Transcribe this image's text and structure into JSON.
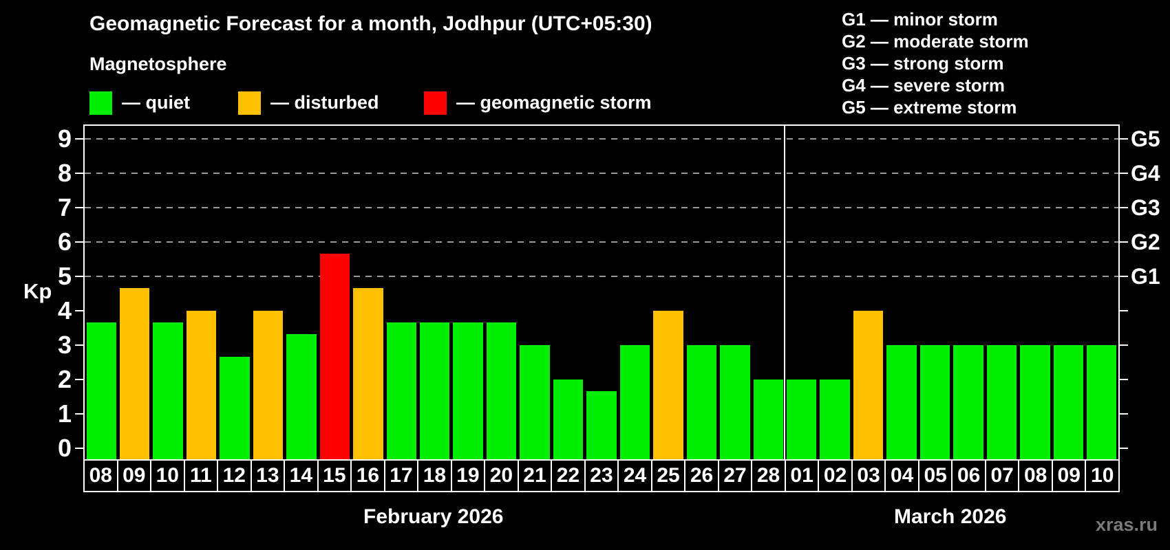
{
  "title": "Geomagnetic Forecast for a month, Jodhpur (UTC+05:30)",
  "subtitle": "Magnetosphere",
  "legend": [
    {
      "status": "quiet",
      "label": "— quiet",
      "color": "#00ee00"
    },
    {
      "status": "disturbed",
      "label": "— disturbed",
      "color": "#ffc000"
    },
    {
      "status": "storm",
      "label": "— geomagnetic storm",
      "color": "#ff0000"
    }
  ],
  "g_legend": [
    "G1 — minor storm",
    "G2 — moderate storm",
    "G3 — strong storm",
    "G4 — severe storm",
    "G5 — extreme storm"
  ],
  "watermark": "xras.ru",
  "chart_data": {
    "type": "bar",
    "ylabel": "Kp",
    "ylim": [
      0,
      9
    ],
    "y_ticks": [
      0,
      1,
      2,
      3,
      4,
      5,
      6,
      7,
      8,
      9
    ],
    "grid_levels": [
      5,
      6,
      7,
      8,
      9
    ],
    "grid_on": true,
    "right_axis": [
      {
        "level": 5,
        "label": "G1"
      },
      {
        "level": 6,
        "label": "G2"
      },
      {
        "level": 7,
        "label": "G3"
      },
      {
        "level": 8,
        "label": "G4"
      },
      {
        "level": 9,
        "label": "G5"
      }
    ],
    "months": [
      {
        "label": "February 2026",
        "days": 21
      },
      {
        "label": "March 2026",
        "days": 10
      }
    ],
    "bars": [
      {
        "day": "08",
        "value": 3.67,
        "status": "quiet"
      },
      {
        "day": "09",
        "value": 4.67,
        "status": "disturbed"
      },
      {
        "day": "10",
        "value": 3.67,
        "status": "quiet"
      },
      {
        "day": "11",
        "value": 4.0,
        "status": "disturbed"
      },
      {
        "day": "12",
        "value": 2.67,
        "status": "quiet"
      },
      {
        "day": "13",
        "value": 4.0,
        "status": "disturbed"
      },
      {
        "day": "14",
        "value": 3.33,
        "status": "quiet"
      },
      {
        "day": "15",
        "value": 5.67,
        "status": "storm"
      },
      {
        "day": "16",
        "value": 4.67,
        "status": "disturbed"
      },
      {
        "day": "17",
        "value": 3.67,
        "status": "quiet"
      },
      {
        "day": "18",
        "value": 3.67,
        "status": "quiet"
      },
      {
        "day": "19",
        "value": 3.67,
        "status": "quiet"
      },
      {
        "day": "20",
        "value": 3.67,
        "status": "quiet"
      },
      {
        "day": "21",
        "value": 3.0,
        "status": "quiet"
      },
      {
        "day": "22",
        "value": 2.0,
        "status": "quiet"
      },
      {
        "day": "23",
        "value": 1.67,
        "status": "quiet"
      },
      {
        "day": "24",
        "value": 3.0,
        "status": "quiet"
      },
      {
        "day": "25",
        "value": 4.0,
        "status": "disturbed"
      },
      {
        "day": "26",
        "value": 3.0,
        "status": "quiet"
      },
      {
        "day": "27",
        "value": 3.0,
        "status": "quiet"
      },
      {
        "day": "28",
        "value": 2.0,
        "status": "quiet"
      },
      {
        "day": "01",
        "value": 2.0,
        "status": "quiet"
      },
      {
        "day": "02",
        "value": 2.0,
        "status": "quiet"
      },
      {
        "day": "03",
        "value": 4.0,
        "status": "disturbed"
      },
      {
        "day": "04",
        "value": 3.0,
        "status": "quiet"
      },
      {
        "day": "05",
        "value": 3.0,
        "status": "quiet"
      },
      {
        "day": "06",
        "value": 3.0,
        "status": "quiet"
      },
      {
        "day": "07",
        "value": 3.0,
        "status": "quiet"
      },
      {
        "day": "08",
        "value": 3.0,
        "status": "quiet"
      },
      {
        "day": "09",
        "value": 3.0,
        "status": "quiet"
      },
      {
        "day": "10",
        "value": 3.0,
        "status": "quiet"
      }
    ]
  }
}
